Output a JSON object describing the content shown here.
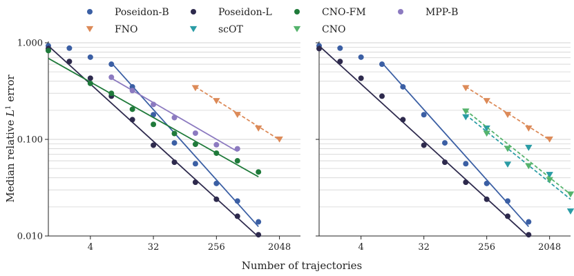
{
  "chart_data": {
    "type": "scatter",
    "xlabel": "Number of trajectories",
    "ylabel": "Median relative L¹ error",
    "ylabel_main": "Median relative ",
    "ylabel_L": "L",
    "ylabel_sup": "1",
    "ylabel_end": " error",
    "x_scale": "log2",
    "y_scale": "log10",
    "xlim": [
      1,
      4096
    ],
    "ylim": [
      0.01,
      1.0
    ],
    "x_ticks": [
      4,
      32,
      256,
      2048
    ],
    "x_tick_labels": [
      "4",
      "32",
      "256",
      "2048"
    ],
    "y_ticks": [
      0.01,
      0.1,
      1.0
    ],
    "y_tick_labels": [
      "0.010",
      "0.100",
      "1.000"
    ],
    "grid": "horizontal minor",
    "legend_placement": "top",
    "legend": [
      {
        "name": "Poseidon-B",
        "color": "#3b5fa4",
        "marker": "circle"
      },
      {
        "name": "Poseidon-L",
        "color": "#2e2a4d",
        "marker": "circle"
      },
      {
        "name": "CNO-FM",
        "color": "#1f7a3a",
        "marker": "circle"
      },
      {
        "name": "MPP-B",
        "color": "#8c7ac0",
        "marker": "circle"
      },
      {
        "name": "FNO",
        "color": "#dc8a58",
        "marker": "triangle"
      },
      {
        "name": "scOT",
        "color": "#2a9ca5",
        "marker": "triangle"
      },
      {
        "name": "CNO",
        "color": "#55b36c",
        "marker": "triangle"
      }
    ],
    "panels": [
      {
        "series": [
          {
            "name": "Poseidon-B",
            "color": "#3b5fa4",
            "marker": "circle",
            "fit_style": "solid",
            "x": [
              1,
              2,
              4,
              8,
              16,
              32,
              64,
              128,
              256,
              512,
              1024
            ],
            "y": [
              0.93,
              0.88,
              0.71,
              0.6,
              0.35,
              0.18,
              0.092,
              0.056,
              0.035,
              0.023,
              0.014
            ],
            "fit_x": [
              8,
              1024
            ],
            "fit_y": [
              0.62,
              0.0125
            ]
          },
          {
            "name": "Poseidon-L",
            "color": "#2e2a4d",
            "marker": "circle",
            "fit_style": "solid",
            "x": [
              1,
              2,
              4,
              8,
              16,
              32,
              64,
              128,
              256,
              512,
              1024
            ],
            "y": [
              0.87,
              0.64,
              0.43,
              0.28,
              0.16,
              0.087,
              0.058,
              0.036,
              0.024,
              0.016,
              0.0103
            ],
            "fit_x": [
              1,
              1024
            ],
            "fit_y": [
              0.93,
              0.0098
            ]
          },
          {
            "name": "CNO-FM",
            "color": "#1f7a3a",
            "marker": "circle",
            "fit_style": "solid",
            "x": [
              1,
              4,
              8,
              16,
              32,
              64,
              128,
              256,
              512,
              1024
            ],
            "y": [
              0.83,
              0.38,
              0.3,
              0.205,
              0.143,
              0.115,
              0.089,
              0.072,
              0.06,
              0.046
            ],
            "fit_x": [
              1,
              1024
            ],
            "fit_y": [
              0.69,
              0.041
            ]
          },
          {
            "name": "MPP-B",
            "color": "#8c7ac0",
            "marker": "circle",
            "fit_style": "solid",
            "x": [
              8,
              16,
              32,
              64,
              128,
              256,
              512
            ],
            "y": [
              0.44,
              0.32,
              0.23,
              0.168,
              0.116,
              0.088,
              0.08
            ],
            "fit_x": [
              8,
              512
            ],
            "fit_y": [
              0.43,
              0.075
            ]
          },
          {
            "name": "FNO",
            "color": "#dc8a58",
            "marker": "triangle",
            "fit_style": "dashed",
            "x": [
              128,
              256,
              512,
              1024,
              2048
            ],
            "y": [
              0.34,
              0.25,
              0.18,
              0.13,
              0.1
            ],
            "fit_x": [
              128,
              2048
            ],
            "fit_y": [
              0.35,
              0.099
            ]
          }
        ]
      },
      {
        "series": [
          {
            "name": "Poseidon-B",
            "color": "#3b5fa4",
            "marker": "circle",
            "fit_style": "solid",
            "x": [
              1,
              2,
              4,
              8,
              16,
              32,
              64,
              128,
              256,
              512,
              1024
            ],
            "y": [
              0.93,
              0.88,
              0.71,
              0.6,
              0.35,
              0.18,
              0.092,
              0.056,
              0.035,
              0.023,
              0.014
            ],
            "fit_x": [
              8,
              1024
            ],
            "fit_y": [
              0.62,
              0.0125
            ]
          },
          {
            "name": "Poseidon-L",
            "color": "#2e2a4d",
            "marker": "circle",
            "fit_style": "solid",
            "x": [
              1,
              2,
              4,
              8,
              16,
              32,
              64,
              128,
              256,
              512,
              1024
            ],
            "y": [
              0.87,
              0.64,
              0.43,
              0.28,
              0.16,
              0.087,
              0.058,
              0.036,
              0.024,
              0.016,
              0.0103
            ],
            "fit_x": [
              1,
              1024
            ],
            "fit_y": [
              0.93,
              0.0098
            ]
          },
          {
            "name": "FNO",
            "color": "#dc8a58",
            "marker": "triangle",
            "fit_style": "dashed",
            "x": [
              128,
              256,
              512,
              1024,
              2048
            ],
            "y": [
              0.34,
              0.25,
              0.18,
              0.13,
              0.1
            ],
            "fit_x": [
              128,
              2048
            ],
            "fit_y": [
              0.35,
              0.099
            ]
          },
          {
            "name": "scOT",
            "color": "#2a9ca5",
            "marker": "triangle",
            "fit_style": "dashed",
            "x": [
              128,
              256,
              512,
              1024,
              2048,
              4096
            ],
            "y": [
              0.17,
              0.13,
              0.055,
              0.082,
              0.043,
              0.018
            ],
            "fit_x": [
              128,
              4096
            ],
            "fit_y": [
              0.18,
              0.024
            ]
          },
          {
            "name": "CNO",
            "color": "#55b36c",
            "marker": "triangle",
            "fit_style": "dashed",
            "x": [
              128,
              256,
              512,
              1024,
              2048,
              4096
            ],
            "y": [
              0.195,
              0.115,
              0.08,
              0.053,
              0.038,
              0.027
            ],
            "fit_x": [
              128,
              4096
            ],
            "fit_y": [
              0.2,
              0.027
            ]
          }
        ]
      }
    ]
  }
}
